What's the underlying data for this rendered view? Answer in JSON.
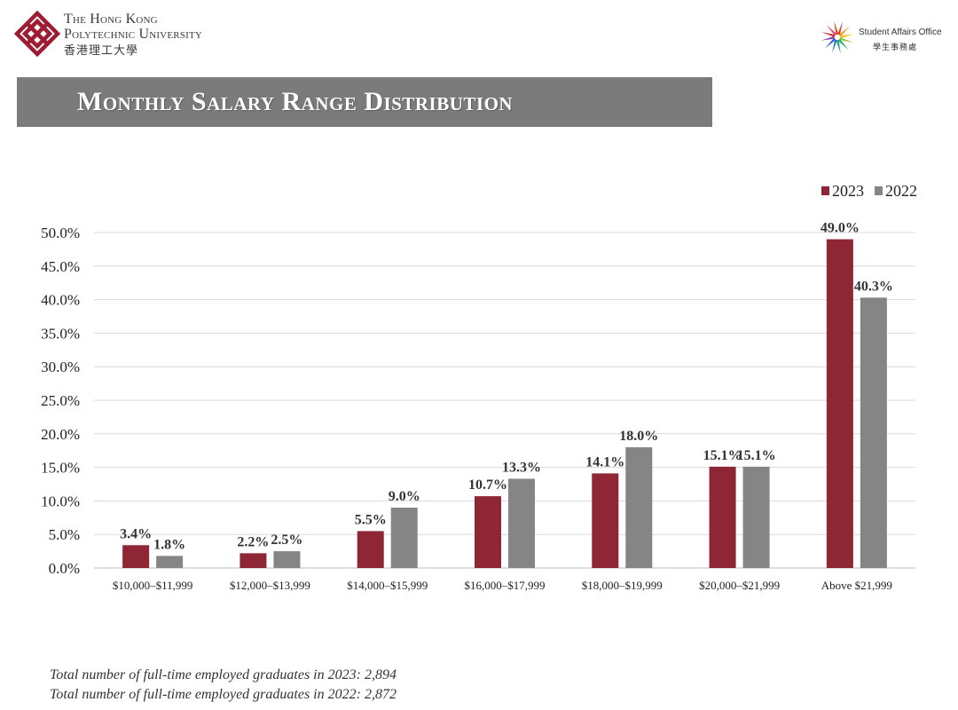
{
  "header": {
    "university_line1": "The Hong Kong",
    "university_line2": "Polytechnic University",
    "university_cn": "香港理工大學",
    "office_en": "Student Affairs Office",
    "office_cn": "學生事務處",
    "brand_color": "#9e1b32"
  },
  "title": "Monthly Salary Range Distribution",
  "chart_data": {
    "type": "bar",
    "title": "Monthly Salary Range Distribution",
    "categories": [
      "$10,000–$11,999",
      "$12,000–$13,999",
      "$14,000–$15,999",
      "$16,000–$17,999",
      "$18,000–$19,999",
      "$20,000–$21,999",
      "Above $21,999"
    ],
    "series": [
      {
        "name": "2023",
        "color": "#8e2636",
        "values": [
          3.4,
          2.2,
          5.5,
          10.7,
          14.1,
          15.1,
          49.0
        ],
        "labels": [
          "3.4%",
          "2.2%",
          "5.5%",
          "10.7%",
          "14.1%",
          "15.1%",
          "49.0%"
        ]
      },
      {
        "name": "2022",
        "color": "#858585",
        "values": [
          1.8,
          2.5,
          9.0,
          13.3,
          18.0,
          15.1,
          40.3
        ],
        "labels": [
          "1.8%",
          "2.5%",
          "9.0%",
          "13.3%",
          "18.0%",
          "15.1%",
          "40.3%"
        ]
      }
    ],
    "ylim": [
      0,
      50
    ],
    "yticks": [
      0,
      5,
      10,
      15,
      20,
      25,
      30,
      35,
      40,
      45,
      50
    ],
    "ytick_labels": [
      "0.0%",
      "5.0%",
      "10.0%",
      "15.0%",
      "20.0%",
      "25.0%",
      "30.0%",
      "35.0%",
      "40.0%",
      "45.0%",
      "50.0%"
    ],
    "xlabel": "",
    "ylabel": "",
    "grid": true,
    "legend": "top-right"
  },
  "footer": {
    "line1": "Total number of full-time employed graduates in 2023: 2,894",
    "line2": "Total number of full-time employed graduates in 2022: 2,872"
  }
}
